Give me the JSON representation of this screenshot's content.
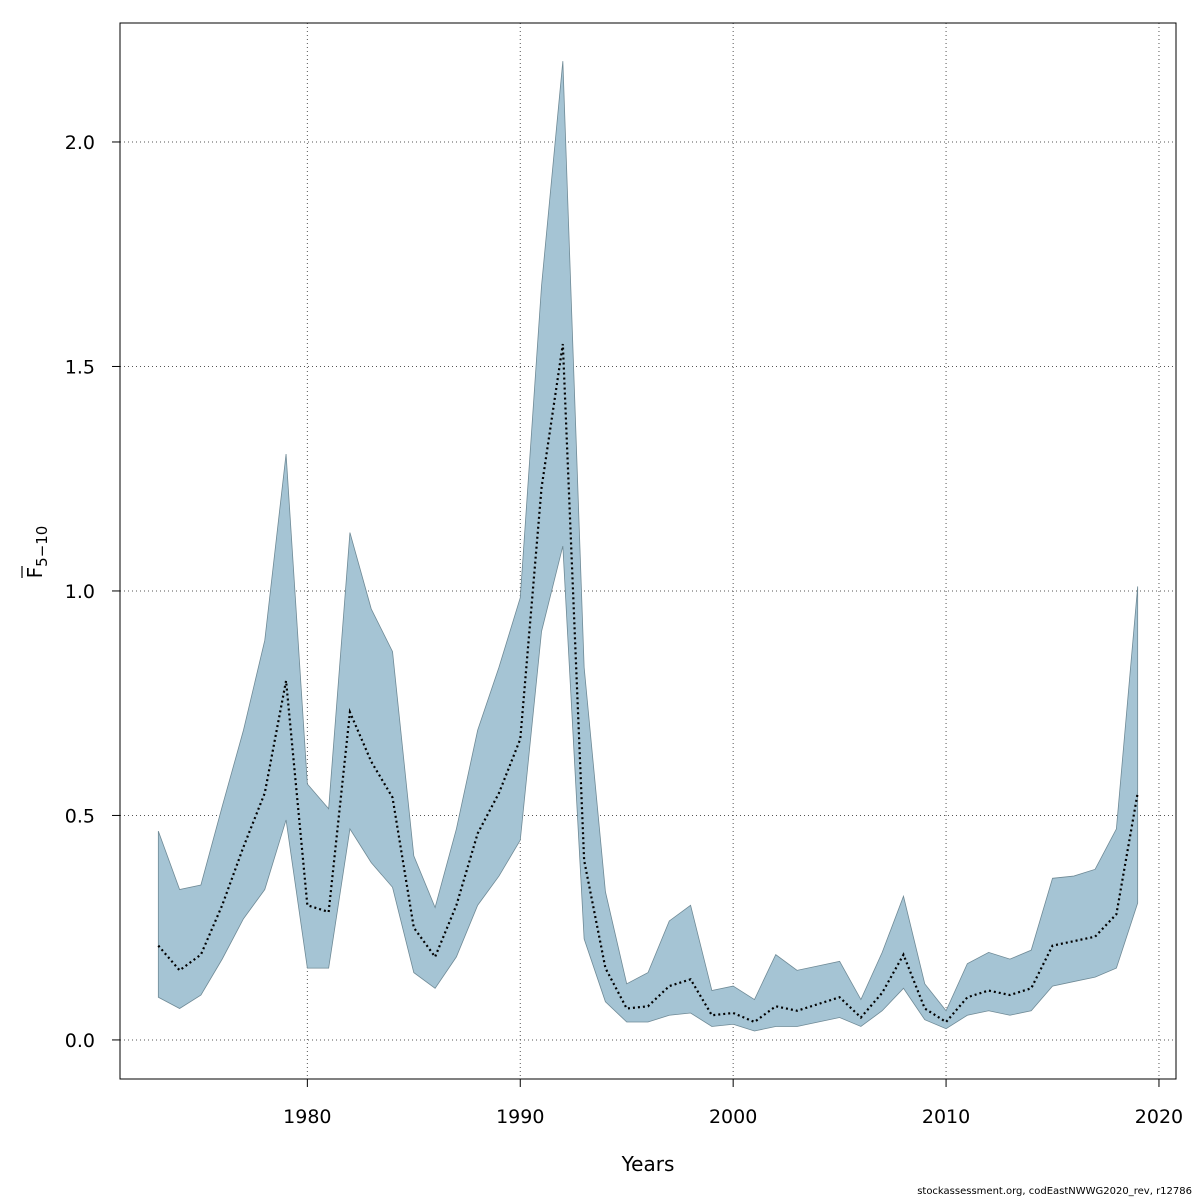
{
  "chart_data": {
    "type": "line",
    "title": "",
    "xlabel": "Years",
    "ylabel_main": "F",
    "ylabel_sub": "5−10",
    "xlim": [
      1971.2,
      2020.8
    ],
    "ylim": [
      -0.087,
      2.265
    ],
    "xticks": [
      1980,
      1990,
      2000,
      2010,
      2020
    ],
    "yticks": [
      0.0,
      0.5,
      1.0,
      1.5,
      2.0
    ],
    "ytick_labels": [
      "0.0",
      "0.5",
      "1.0",
      "1.5",
      "2.0"
    ],
    "grid": true,
    "colors": {
      "band_fill": "#a5c4d4",
      "band_stroke": "#6f8a96",
      "line": "#000000"
    },
    "series": [
      {
        "name": "estimate",
        "style": "dotted",
        "x": [
          1973,
          1974,
          1975,
          1976,
          1977,
          1978,
          1979,
          1980,
          1981,
          1982,
          1983,
          1984,
          1985,
          1986,
          1987,
          1988,
          1989,
          1990,
          1991,
          1992,
          1993,
          1994,
          1995,
          1996,
          1997,
          1998,
          1999,
          2000,
          2001,
          2002,
          2003,
          2004,
          2005,
          2006,
          2007,
          2008,
          2009,
          2010,
          2011,
          2012,
          2013,
          2014,
          2015,
          2016,
          2017,
          2018,
          2019
        ],
        "values": [
          0.21,
          0.155,
          0.19,
          0.3,
          0.43,
          0.55,
          0.8,
          0.3,
          0.285,
          0.73,
          0.62,
          0.54,
          0.25,
          0.185,
          0.3,
          0.46,
          0.55,
          0.67,
          1.23,
          1.55,
          0.4,
          0.16,
          0.07,
          0.075,
          0.12,
          0.135,
          0.055,
          0.06,
          0.04,
          0.075,
          0.065,
          0.08,
          0.095,
          0.05,
          0.105,
          0.19,
          0.07,
          0.04,
          0.095,
          0.11,
          0.1,
          0.115,
          0.21,
          0.22,
          0.23,
          0.28,
          0.55
        ]
      },
      {
        "name": "upper",
        "x": [
          1973,
          1974,
          1975,
          1976,
          1977,
          1978,
          1979,
          1980,
          1981,
          1982,
          1983,
          1984,
          1985,
          1986,
          1987,
          1988,
          1989,
          1990,
          1991,
          1992,
          1993,
          1994,
          1995,
          1996,
          1997,
          1998,
          1999,
          2000,
          2001,
          2002,
          2003,
          2004,
          2005,
          2006,
          2007,
          2008,
          2009,
          2010,
          2011,
          2012,
          2013,
          2014,
          2015,
          2016,
          2017,
          2018,
          2019
        ],
        "values": [
          0.465,
          0.335,
          0.345,
          0.52,
          0.69,
          0.89,
          1.305,
          0.57,
          0.515,
          1.13,
          0.96,
          0.865,
          0.41,
          0.295,
          0.47,
          0.69,
          0.83,
          0.985,
          1.68,
          2.18,
          0.83,
          0.33,
          0.125,
          0.15,
          0.265,
          0.3,
          0.11,
          0.12,
          0.09,
          0.19,
          0.155,
          0.165,
          0.175,
          0.09,
          0.195,
          0.32,
          0.125,
          0.065,
          0.17,
          0.195,
          0.18,
          0.2,
          0.36,
          0.365,
          0.38,
          0.47,
          1.01
        ]
      },
      {
        "name": "lower",
        "x": [
          1973,
          1974,
          1975,
          1976,
          1977,
          1978,
          1979,
          1980,
          1981,
          1982,
          1983,
          1984,
          1985,
          1986,
          1987,
          1988,
          1989,
          1990,
          1991,
          1992,
          1993,
          1994,
          1995,
          1996,
          1997,
          1998,
          1999,
          2000,
          2001,
          2002,
          2003,
          2004,
          2005,
          2006,
          2007,
          2008,
          2009,
          2010,
          2011,
          2012,
          2013,
          2014,
          2015,
          2016,
          2017,
          2018,
          2019
        ],
        "values": [
          0.095,
          0.07,
          0.1,
          0.18,
          0.27,
          0.335,
          0.49,
          0.16,
          0.16,
          0.47,
          0.395,
          0.34,
          0.15,
          0.115,
          0.185,
          0.3,
          0.365,
          0.445,
          0.91,
          1.1,
          0.225,
          0.085,
          0.04,
          0.04,
          0.055,
          0.06,
          0.03,
          0.035,
          0.02,
          0.03,
          0.03,
          0.04,
          0.05,
          0.03,
          0.065,
          0.115,
          0.045,
          0.025,
          0.055,
          0.065,
          0.055,
          0.065,
          0.12,
          0.13,
          0.14,
          0.16,
          0.305
        ]
      }
    ]
  },
  "footer": "stockassessment.org, codEastNWWG2020_rev, r12786"
}
